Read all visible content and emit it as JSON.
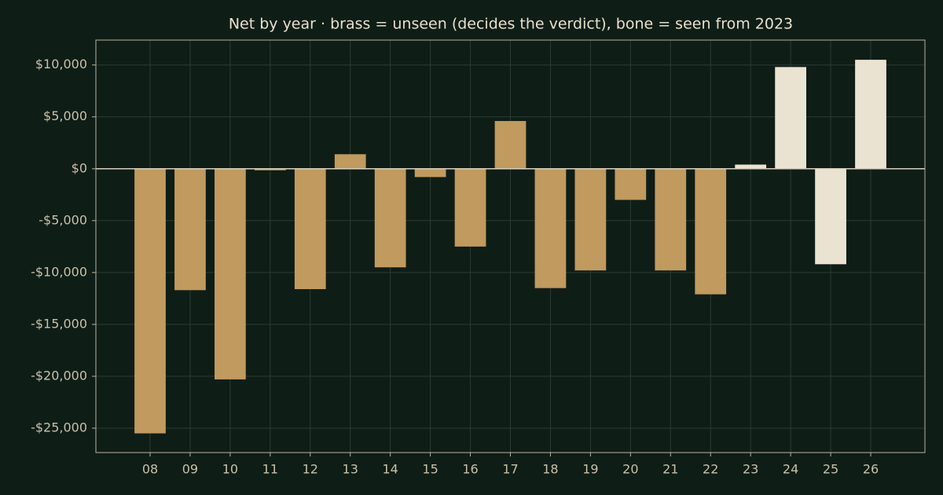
{
  "chart_data": {
    "type": "bar",
    "title": "Net by year  ·  brass = unseen (decides the verdict), bone = seen from 2023",
    "categories": [
      "08",
      "09",
      "10",
      "11",
      "12",
      "13",
      "14",
      "15",
      "16",
      "17",
      "18",
      "19",
      "20",
      "21",
      "22",
      "23",
      "24",
      "25",
      "26"
    ],
    "series": [
      {
        "color": "#c09a5e",
        "values": [
          -25500,
          -11700,
          -20300,
          -150,
          -11600,
          1400,
          -9500,
          -800,
          -7500,
          4600,
          -11500,
          -9800,
          -3000,
          -9800,
          -12100,
          null,
          null,
          null,
          null
        ]
      },
      {
        "color": "#ebe3d2",
        "values": [
          null,
          null,
          null,
          null,
          null,
          null,
          null,
          null,
          null,
          null,
          null,
          null,
          null,
          null,
          null,
          400,
          9800,
          -9200,
          10500
        ]
      }
    ],
    "ylim": [
      -27350,
      12400
    ],
    "yticks": [
      {
        "value": -25000,
        "label": "-$25,000"
      },
      {
        "value": -20000,
        "label": "-$20,000"
      },
      {
        "value": -15000,
        "label": "-$15,000"
      },
      {
        "value": -10000,
        "label": "-$10,000"
      },
      {
        "value": -5000,
        "label": "-$5,000"
      },
      {
        "value": 0,
        "label": "$0"
      },
      {
        "value": 5000,
        "label": "$5,000"
      },
      {
        "value": 10000,
        "label": "$10,000"
      }
    ],
    "grid": true
  }
}
